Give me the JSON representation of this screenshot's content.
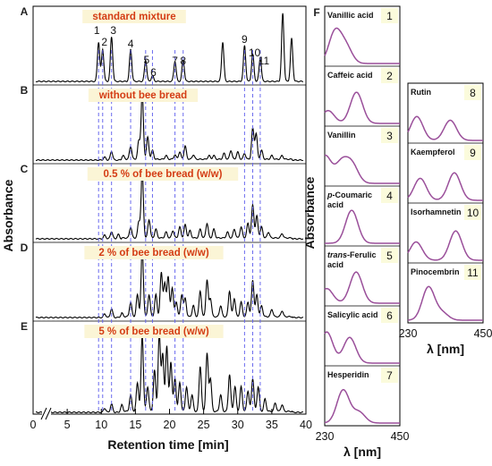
{
  "chart_data": [
    {
      "type": "line",
      "xlabel": "Retention time [min]",
      "ylabel": "Absorbance",
      "xlim": [
        0,
        40
      ],
      "x_ticks": [
        "0",
        "5",
        "10",
        "15",
        "20",
        "25",
        "30",
        "35",
        "40"
      ],
      "panel_letters": [
        "A",
        "B",
        "C",
        "D",
        "E"
      ],
      "panel_titles": [
        "standard mixture",
        "without bee bread",
        "0.5 % of bee bread (w/w)",
        "2 % of bee bread (w/w)",
        "5 % of bee bread (w/w)"
      ],
      "peak_labels": [
        "1",
        "2",
        "3",
        "4",
        "5",
        "6",
        "7",
        "8",
        "9",
        "10",
        "11"
      ],
      "peak_times": [
        9.6,
        10.2,
        11.5,
        14.3,
        16.5,
        17.5,
        20.8,
        22.0,
        31.0,
        32.2,
        33.3
      ],
      "standard_extra_peaks": [
        {
          "x": 27.8,
          "y": 0.55
        },
        {
          "x": 36.6,
          "y": 0.95
        },
        {
          "x": 37.9,
          "y": 0.6
        }
      ],
      "series": [
        {
          "peaks": [
            [
              9.6,
              0.55
            ],
            [
              10.2,
              0.45
            ],
            [
              11.5,
              0.62
            ],
            [
              14.3,
              0.45
            ],
            [
              16.5,
              0.3
            ],
            [
              17.5,
              0.08
            ],
            [
              20.8,
              0.28
            ],
            [
              22.0,
              0.3
            ],
            [
              27.8,
              0.55
            ],
            [
              31.0,
              0.5
            ],
            [
              32.2,
              0.38
            ],
            [
              33.3,
              0.33
            ],
            [
              36.6,
              0.95
            ],
            [
              37.9,
              0.6
            ]
          ]
        },
        {
          "peaks": [
            [
              10.5,
              0.04
            ],
            [
              11.5,
              0.12
            ],
            [
              13.2,
              0.05
            ],
            [
              14.3,
              0.18
            ],
            [
              15.5,
              0.25
            ],
            [
              16.0,
              0.9
            ],
            [
              16.8,
              0.3
            ],
            [
              17.5,
              0.12
            ],
            [
              19.5,
              0.05
            ],
            [
              20.8,
              0.06
            ],
            [
              21.5,
              0.1
            ],
            [
              22.3,
              0.18
            ],
            [
              23.5,
              0.06
            ],
            [
              25.8,
              0.05
            ],
            [
              26.5,
              0.05
            ],
            [
              28.0,
              0.08
            ],
            [
              29.0,
              0.12
            ],
            [
              30.0,
              0.1
            ],
            [
              31.0,
              0.08
            ],
            [
              32.2,
              0.42
            ],
            [
              32.7,
              0.35
            ],
            [
              33.5,
              0.12
            ],
            [
              35.0,
              0.05
            ],
            [
              36.5,
              0.05
            ]
          ]
        },
        {
          "peaks": [
            [
              10.5,
              0.05
            ],
            [
              11.5,
              0.1
            ],
            [
              12.5,
              0.06
            ],
            [
              14.3,
              0.15
            ],
            [
              15.5,
              0.22
            ],
            [
              16.0,
              0.9
            ],
            [
              17.0,
              0.25
            ],
            [
              18.0,
              0.12
            ],
            [
              19.5,
              0.08
            ],
            [
              20.5,
              0.1
            ],
            [
              21.5,
              0.15
            ],
            [
              22.3,
              0.18
            ],
            [
              23.0,
              0.1
            ],
            [
              24.5,
              0.12
            ],
            [
              25.5,
              0.2
            ],
            [
              26.5,
              0.12
            ],
            [
              28.5,
              0.08
            ],
            [
              29.5,
              0.12
            ],
            [
              30.5,
              0.15
            ],
            [
              31.5,
              0.2
            ],
            [
              32.2,
              0.45
            ],
            [
              32.8,
              0.3
            ],
            [
              33.5,
              0.15
            ],
            [
              34.5,
              0.08
            ],
            [
              36.5,
              0.06
            ]
          ]
        },
        {
          "peaks": [
            [
              10.5,
              0.05
            ],
            [
              11.5,
              0.12
            ],
            [
              13.0,
              0.05
            ],
            [
              14.3,
              0.2
            ],
            [
              15.3,
              0.3
            ],
            [
              16.0,
              0.92
            ],
            [
              17.0,
              0.3
            ],
            [
              18.0,
              0.3
            ],
            [
              18.8,
              0.6
            ],
            [
              19.3,
              0.45
            ],
            [
              19.8,
              0.55
            ],
            [
              20.4,
              0.4
            ],
            [
              21.0,
              0.2
            ],
            [
              21.8,
              0.3
            ],
            [
              22.3,
              0.25
            ],
            [
              23.5,
              0.15
            ],
            [
              24.5,
              0.35
            ],
            [
              25.5,
              0.5
            ],
            [
              26.0,
              0.25
            ],
            [
              27.5,
              0.15
            ],
            [
              28.8,
              0.35
            ],
            [
              29.5,
              0.25
            ],
            [
              30.5,
              0.2
            ],
            [
              31.5,
              0.2
            ],
            [
              32.2,
              0.5
            ],
            [
              32.8,
              0.3
            ],
            [
              33.5,
              0.15
            ],
            [
              35.0,
              0.1
            ],
            [
              36.5,
              0.08
            ]
          ]
        },
        {
          "peaks": [
            [
              10.5,
              0.05
            ],
            [
              11.5,
              0.1
            ],
            [
              13.0,
              0.08
            ],
            [
              14.3,
              0.2
            ],
            [
              15.3,
              0.35
            ],
            [
              16.0,
              0.92
            ],
            [
              16.8,
              0.3
            ],
            [
              17.8,
              0.5
            ],
            [
              18.5,
              0.95
            ],
            [
              19.0,
              0.7
            ],
            [
              19.6,
              0.8
            ],
            [
              20.2,
              0.6
            ],
            [
              20.8,
              0.4
            ],
            [
              21.5,
              0.35
            ],
            [
              22.5,
              0.3
            ],
            [
              23.3,
              0.2
            ],
            [
              24.5,
              0.55
            ],
            [
              25.5,
              0.7
            ],
            [
              26.0,
              0.4
            ],
            [
              27.5,
              0.2
            ],
            [
              28.8,
              0.45
            ],
            [
              29.6,
              0.3
            ],
            [
              30.5,
              0.3
            ],
            [
              31.5,
              0.25
            ],
            [
              32.2,
              0.4
            ],
            [
              33.0,
              0.3
            ],
            [
              34.0,
              0.15
            ],
            [
              35.5,
              0.1
            ],
            [
              36.5,
              0.08
            ]
          ]
        }
      ]
    },
    {
      "type": "line",
      "panel_letter": "F",
      "ylabel": "Absorbance",
      "xlabel": "λ [nm]",
      "x_ticks": [
        "230",
        "450"
      ],
      "spectra": [
        {
          "id": "1",
          "label": "Vanillic acid",
          "peaks": [
            [
              260,
              0.85
            ],
            [
              292,
              0.45
            ]
          ]
        },
        {
          "id": "2",
          "label": "Caffeic acid",
          "peaks": [
            [
              240,
              0.35
            ],
            [
              323,
              0.85
            ]
          ]
        },
        {
          "id": "3",
          "label": "Vanillin",
          "peaks": [
            [
              231,
              0.75
            ],
            [
              279,
              0.55
            ],
            [
              310,
              0.5
            ]
          ]
        },
        {
          "id": "4",
          "label": "p-Coumaric acid",
          "label_parts": [
            "p",
            "-Coumaric",
            "acid"
          ],
          "peaks": [
            [
              309,
              0.9
            ]
          ]
        },
        {
          "id": "5",
          "label": "trans-Ferulic acid",
          "label_parts": [
            "trans",
            "-Ferulic",
            "acid"
          ],
          "peaks": [
            [
              236,
              0.4
            ],
            [
              322,
              0.85
            ]
          ]
        },
        {
          "id": "6",
          "label": "Salicylic acid",
          "peaks": [
            [
              236,
              0.85
            ],
            [
              303,
              0.7
            ]
          ]
        },
        {
          "id": "7",
          "label": "Hesperidin",
          "peaks": [
            [
              284,
              0.9
            ],
            [
              330,
              0.3
            ]
          ]
        },
        {
          "id": "8",
          "label": "Rutin",
          "peaks": [
            [
              256,
              0.65
            ],
            [
              354,
              0.55
            ]
          ]
        },
        {
          "id": "9",
          "label": "Kaempferol",
          "peaks": [
            [
              266,
              0.6
            ],
            [
              366,
              0.75
            ]
          ]
        },
        {
          "id": "10",
          "label": "Isorhamnetin",
          "peaks": [
            [
              254,
              0.5
            ],
            [
              370,
              0.8
            ]
          ]
        },
        {
          "id": "11",
          "label": "Pinocembrin",
          "peaks": [
            [
              290,
              0.9
            ],
            [
              330,
              0.2
            ]
          ]
        }
      ]
    },
    {
      "type": "line",
      "xlabel": "λ [nm]",
      "x_ticks": [
        "230",
        "450"
      ]
    }
  ],
  "colors": {
    "title": "#d43c14",
    "trace": "#000000",
    "spectrum": "#9a4f9a",
    "guide": "#6a6aee",
    "badge": "#fbfbdc",
    "title_bg": "#fbf5d6"
  }
}
